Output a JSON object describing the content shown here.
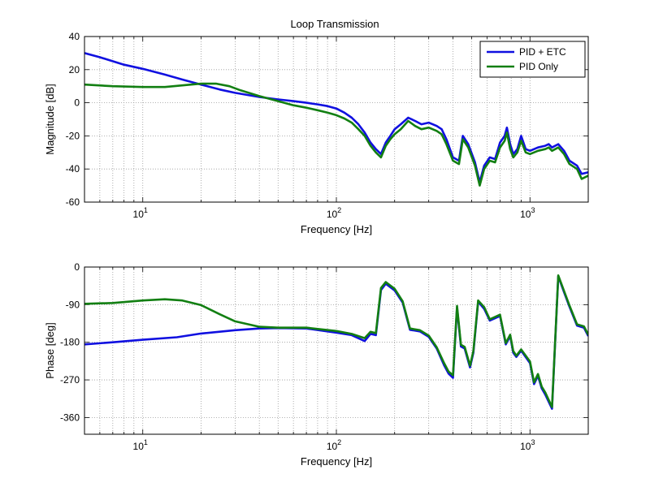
{
  "figure_title": "Loop Transmission",
  "colors": {
    "pid_etc": "#1010e0",
    "pid_only": "#127f12",
    "grid": "#9a9a9a",
    "axis": "#000000"
  },
  "legend": {
    "placement": "top-right",
    "items": [
      "PID + ETC",
      "PID Only"
    ]
  },
  "chart_data": [
    {
      "type": "line",
      "title": "Loop Transmission",
      "xlabel": "Frequency [Hz]",
      "ylabel": "Magnitude [dB]",
      "xscale": "log",
      "xlim": [
        5,
        2000
      ],
      "ylim": [
        -60,
        40
      ],
      "xticks": [
        {
          "value": 10,
          "base": "10",
          "exp": "1"
        },
        {
          "value": 100,
          "base": "10",
          "exp": "2"
        },
        {
          "value": 1000,
          "base": "10",
          "exp": "3"
        }
      ],
      "yticks": [
        {
          "value": 40,
          "label": "40"
        },
        {
          "value": 20,
          "label": "20"
        },
        {
          "value": 0,
          "label": "0"
        },
        {
          "value": -20,
          "label": "-20"
        },
        {
          "value": -40,
          "label": "-40"
        },
        {
          "value": -60,
          "label": "-60"
        }
      ],
      "grid": true,
      "series": [
        {
          "name": "PID + ETC",
          "color": "#1010e0",
          "points": [
            [
              5,
              30
            ],
            [
              6,
              27.5
            ],
            [
              8,
              23
            ],
            [
              10,
              20.5
            ],
            [
              13,
              17
            ],
            [
              16,
              14
            ],
            [
              20,
              11
            ],
            [
              25,
              8
            ],
            [
              30,
              6
            ],
            [
              40,
              3.5
            ],
            [
              50,
              2
            ],
            [
              60,
              1
            ],
            [
              70,
              0
            ],
            [
              80,
              -1
            ],
            [
              90,
              -2
            ],
            [
              100,
              -3.5
            ],
            [
              110,
              -6
            ],
            [
              120,
              -9
            ],
            [
              130,
              -13
            ],
            [
              140,
              -18
            ],
            [
              150,
              -24
            ],
            [
              160,
              -28
            ],
            [
              170,
              -31
            ],
            [
              180,
              -24
            ],
            [
              190,
              -20
            ],
            [
              200,
              -16
            ],
            [
              215,
              -13
            ],
            [
              235,
              -9
            ],
            [
              255,
              -11
            ],
            [
              275,
              -13
            ],
            [
              300,
              -12
            ],
            [
              330,
              -14
            ],
            [
              350,
              -16
            ],
            [
              370,
              -22
            ],
            [
              400,
              -33
            ],
            [
              430,
              -35
            ],
            [
              450,
              -20
            ],
            [
              480,
              -25
            ],
            [
              520,
              -36
            ],
            [
              550,
              -48
            ],
            [
              580,
              -38
            ],
            [
              620,
              -33
            ],
            [
              660,
              -34
            ],
            [
              700,
              -24
            ],
            [
              740,
              -20
            ],
            [
              760,
              -15
            ],
            [
              790,
              -25
            ],
            [
              820,
              -31
            ],
            [
              860,
              -28
            ],
            [
              900,
              -20
            ],
            [
              950,
              -28
            ],
            [
              1000,
              -29
            ],
            [
              1100,
              -27
            ],
            [
              1200,
              -26
            ],
            [
              1250,
              -25
            ],
            [
              1300,
              -27
            ],
            [
              1400,
              -25
            ],
            [
              1500,
              -29
            ],
            [
              1600,
              -35
            ],
            [
              1750,
              -38
            ],
            [
              1850,
              -43
            ],
            [
              2000,
              -42
            ]
          ]
        },
        {
          "name": "PID Only",
          "color": "#127f12",
          "points": [
            [
              5,
              11
            ],
            [
              7,
              10
            ],
            [
              10,
              9.5
            ],
            [
              13,
              9.5
            ],
            [
              16,
              10.5
            ],
            [
              20,
              11.5
            ],
            [
              24,
              11.5
            ],
            [
              28,
              10
            ],
            [
              32,
              7.5
            ],
            [
              40,
              4
            ],
            [
              50,
              1
            ],
            [
              60,
              -1.5
            ],
            [
              70,
              -3
            ],
            [
              80,
              -4.5
            ],
            [
              90,
              -6
            ],
            [
              100,
              -7.5
            ],
            [
              110,
              -9.5
            ],
            [
              120,
              -12
            ],
            [
              130,
              -16
            ],
            [
              140,
              -20
            ],
            [
              150,
              -26
            ],
            [
              160,
              -30
            ],
            [
              170,
              -33
            ],
            [
              180,
              -26
            ],
            [
              190,
              -22
            ],
            [
              200,
              -19
            ],
            [
              215,
              -16
            ],
            [
              235,
              -11
            ],
            [
              255,
              -14
            ],
            [
              275,
              -16
            ],
            [
              300,
              -15
            ],
            [
              330,
              -17
            ],
            [
              350,
              -19
            ],
            [
              370,
              -25
            ],
            [
              400,
              -35
            ],
            [
              430,
              -37
            ],
            [
              450,
              -22
            ],
            [
              480,
              -27
            ],
            [
              520,
              -38
            ],
            [
              550,
              -50
            ],
            [
              580,
              -40
            ],
            [
              620,
              -35
            ],
            [
              660,
              -36
            ],
            [
              700,
              -27
            ],
            [
              740,
              -23
            ],
            [
              760,
              -18
            ],
            [
              790,
              -28
            ],
            [
              820,
              -33
            ],
            [
              860,
              -30
            ],
            [
              900,
              -23
            ],
            [
              950,
              -30
            ],
            [
              1000,
              -31
            ],
            [
              1100,
              -29
            ],
            [
              1200,
              -28
            ],
            [
              1250,
              -27
            ],
            [
              1300,
              -29
            ],
            [
              1400,
              -27
            ],
            [
              1500,
              -31
            ],
            [
              1600,
              -37
            ],
            [
              1750,
              -40
            ],
            [
              1850,
              -46
            ],
            [
              2000,
              -44
            ]
          ]
        }
      ]
    },
    {
      "type": "line",
      "title": "",
      "xlabel": "Frequency [Hz]",
      "ylabel": "Phase [deg]",
      "xscale": "log",
      "xlim": [
        5,
        2000
      ],
      "ylim": [
        -400,
        0
      ],
      "xticks": [
        {
          "value": 10,
          "base": "10",
          "exp": "1"
        },
        {
          "value": 100,
          "base": "10",
          "exp": "2"
        },
        {
          "value": 1000,
          "base": "10",
          "exp": "3"
        }
      ],
      "yticks": [
        {
          "value": 0,
          "label": "0"
        },
        {
          "value": -90,
          "label": "-90"
        },
        {
          "value": -180,
          "label": "-180"
        },
        {
          "value": -270,
          "label": "-270"
        },
        {
          "value": -360,
          "label": "-360"
        }
      ],
      "grid": true,
      "series": [
        {
          "name": "PID + ETC",
          "color": "#1010e0",
          "points": [
            [
              5,
              -185
            ],
            [
              7,
              -180
            ],
            [
              10,
              -174
            ],
            [
              15,
              -168
            ],
            [
              20,
              -159
            ],
            [
              30,
              -151
            ],
            [
              40,
              -147
            ],
            [
              50,
              -146
            ],
            [
              70,
              -147
            ],
            [
              100,
              -157
            ],
            [
              120,
              -163
            ],
            [
              140,
              -177
            ],
            [
              150,
              -160
            ],
            [
              160,
              -163
            ],
            [
              170,
              -55
            ],
            [
              180,
              -40
            ],
            [
              200,
              -56
            ],
            [
              220,
              -85
            ],
            [
              240,
              -150
            ],
            [
              270,
              -154
            ],
            [
              300,
              -167
            ],
            [
              330,
              -195
            ],
            [
              360,
              -235
            ],
            [
              380,
              -255
            ],
            [
              400,
              -265
            ],
            [
              420,
              -97
            ],
            [
              440,
              -190
            ],
            [
              460,
              -195
            ],
            [
              490,
              -240
            ],
            [
              510,
              -205
            ],
            [
              540,
              -83
            ],
            [
              580,
              -100
            ],
            [
              620,
              -128
            ],
            [
              700,
              -117
            ],
            [
              750,
              -185
            ],
            [
              790,
              -165
            ],
            [
              820,
              -205
            ],
            [
              850,
              -215
            ],
            [
              900,
              -200
            ],
            [
              1000,
              -230
            ],
            [
              1050,
              -280
            ],
            [
              1100,
              -260
            ],
            [
              1150,
              -290
            ],
            [
              1200,
              -305
            ],
            [
              1300,
              -339
            ],
            [
              1400,
              -22
            ],
            [
              1500,
              -60
            ],
            [
              1600,
              -95
            ],
            [
              1750,
              -140
            ],
            [
              1900,
              -145
            ],
            [
              2000,
              -165
            ]
          ]
        },
        {
          "name": "PID Only",
          "color": "#127f12",
          "points": [
            [
              5,
              -88
            ],
            [
              7,
              -86
            ],
            [
              10,
              -80
            ],
            [
              13,
              -77
            ],
            [
              16,
              -80
            ],
            [
              20,
              -91
            ],
            [
              25,
              -113
            ],
            [
              30,
              -130
            ],
            [
              40,
              -143
            ],
            [
              50,
              -145
            ],
            [
              70,
              -145
            ],
            [
              100,
              -153
            ],
            [
              120,
              -160
            ],
            [
              140,
              -170
            ],
            [
              150,
              -155
            ],
            [
              160,
              -158
            ],
            [
              170,
              -50
            ],
            [
              180,
              -36
            ],
            [
              200,
              -52
            ],
            [
              220,
              -82
            ],
            [
              240,
              -147
            ],
            [
              270,
              -151
            ],
            [
              300,
              -164
            ],
            [
              330,
              -192
            ],
            [
              360,
              -230
            ],
            [
              380,
              -250
            ],
            [
              400,
              -259
            ],
            [
              420,
              -93
            ],
            [
              440,
              -186
            ],
            [
              460,
              -191
            ],
            [
              490,
              -236
            ],
            [
              510,
              -201
            ],
            [
              540,
              -80
            ],
            [
              580,
              -96
            ],
            [
              620,
              -125
            ],
            [
              700,
              -114
            ],
            [
              750,
              -182
            ],
            [
              790,
              -162
            ],
            [
              820,
              -201
            ],
            [
              850,
              -212
            ],
            [
              900,
              -197
            ],
            [
              1000,
              -226
            ],
            [
              1050,
              -276
            ],
            [
              1100,
              -256
            ],
            [
              1150,
              -286
            ],
            [
              1200,
              -300
            ],
            [
              1300,
              -335
            ],
            [
              1400,
              -20
            ],
            [
              1500,
              -57
            ],
            [
              1600,
              -92
            ],
            [
              1750,
              -137
            ],
            [
              1900,
              -142
            ],
            [
              2000,
              -162
            ]
          ]
        }
      ]
    }
  ]
}
